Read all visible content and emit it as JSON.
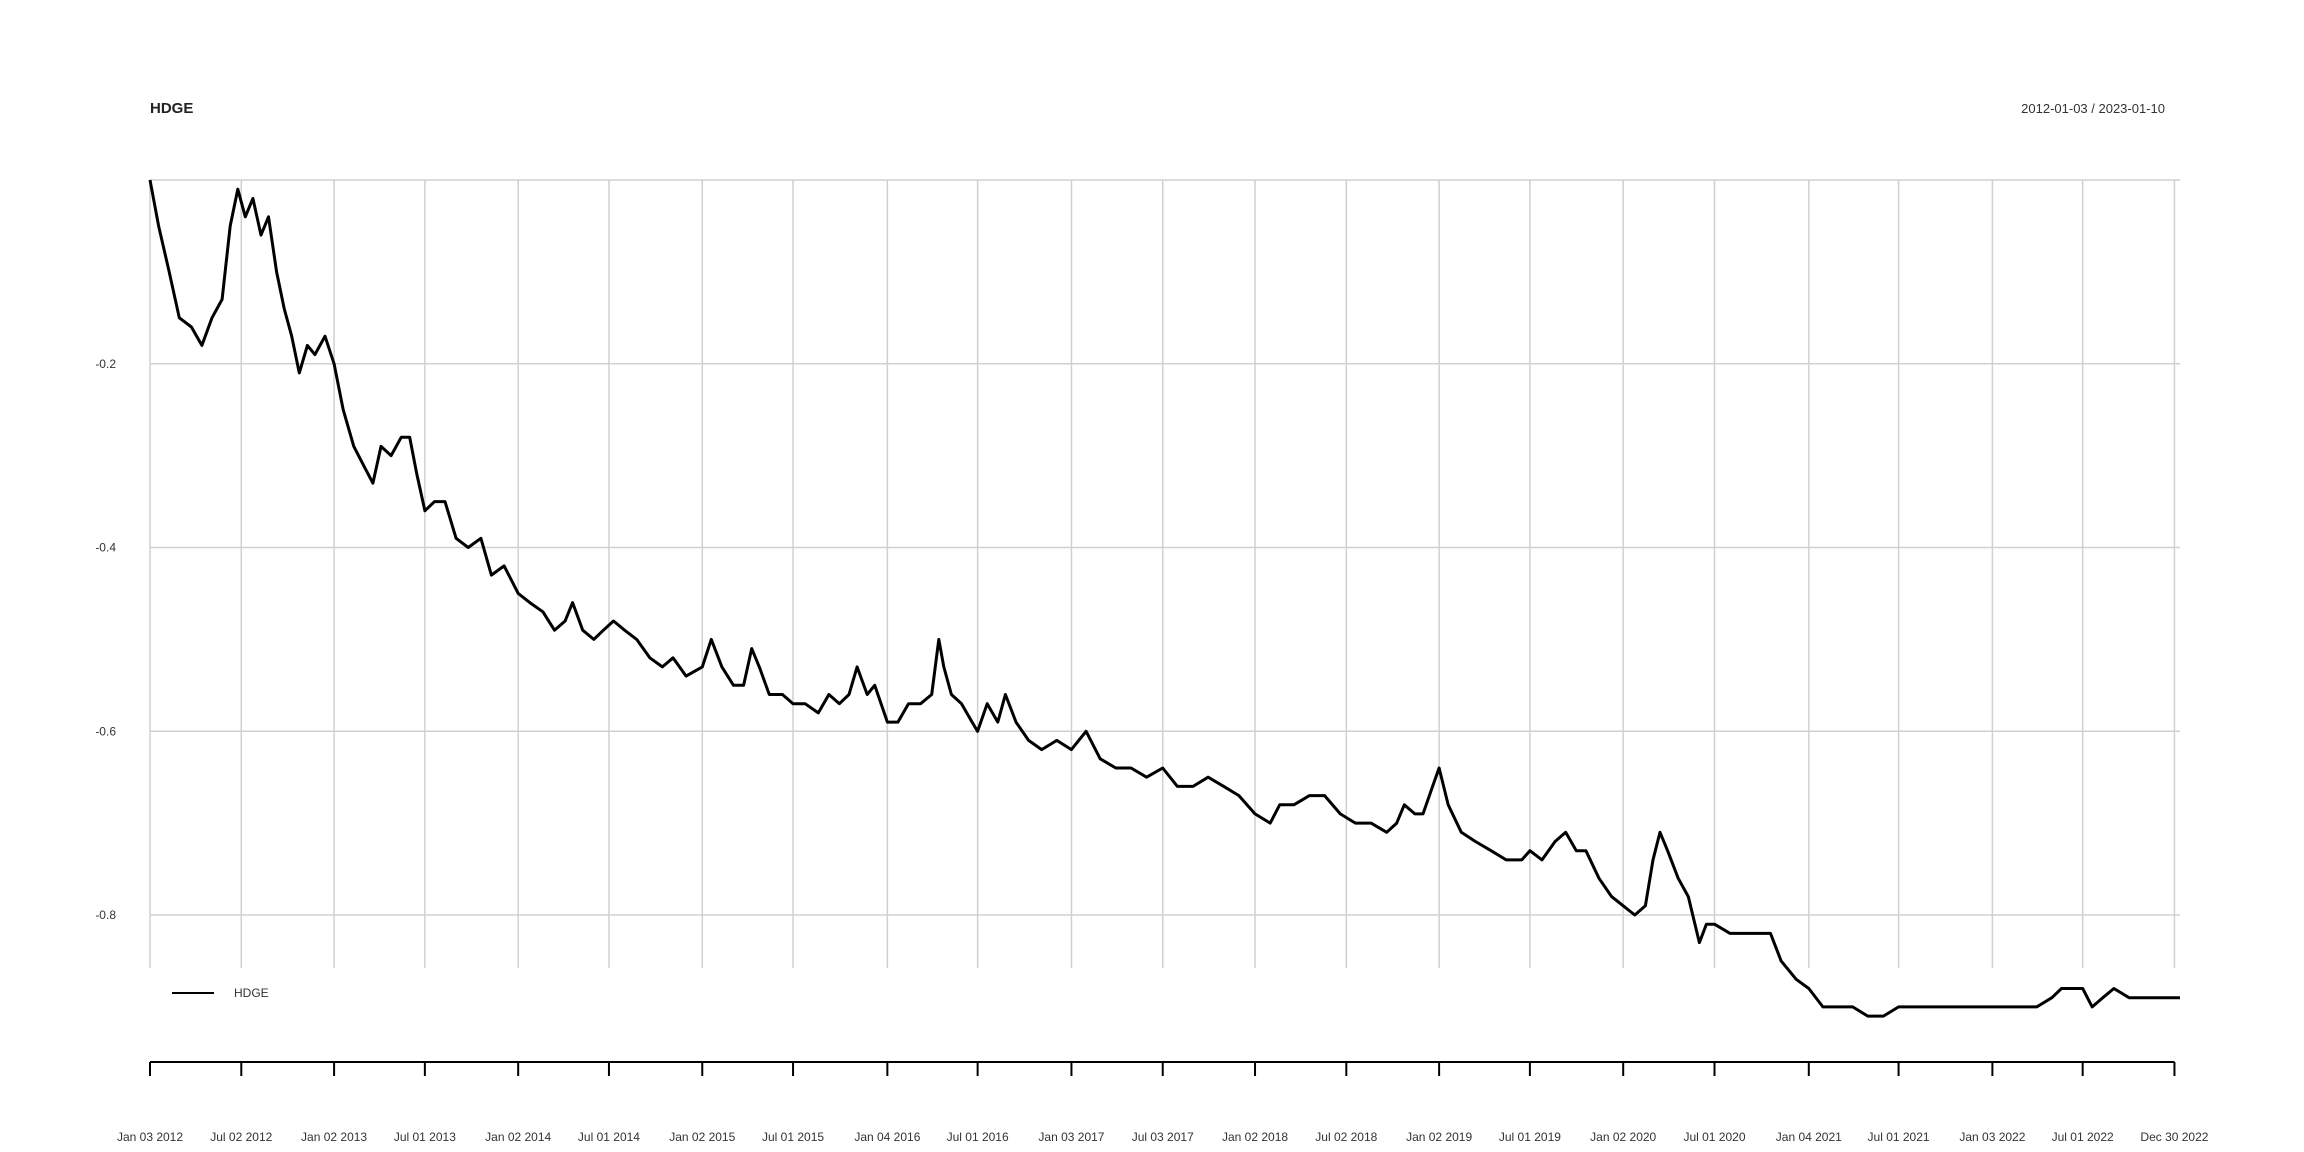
{
  "chart_data": {
    "type": "line",
    "title": "HDGE",
    "date_range": "2012-01-03 / 2023-01-10",
    "xlabel": "",
    "ylabel": "",
    "ylim": [
      -0.96,
      0.0
    ],
    "xlim": [
      "2012-01-03",
      "2023-01-10"
    ],
    "grid": true,
    "legend": {
      "position": "bottom-left",
      "entries": [
        "HDGE"
      ]
    },
    "y_ticks": [
      -0.2,
      -0.4,
      -0.6,
      -0.8
    ],
    "x_ticks": [
      {
        "label": "Jan 03 2012",
        "date": "2012-01-03"
      },
      {
        "label": "Jul 02 2012",
        "date": "2012-07-02"
      },
      {
        "label": "Jan 02 2013",
        "date": "2013-01-02"
      },
      {
        "label": "Jul 01 2013",
        "date": "2013-07-01"
      },
      {
        "label": "Jan 02 2014",
        "date": "2014-01-02"
      },
      {
        "label": "Jul 01 2014",
        "date": "2014-07-01"
      },
      {
        "label": "Jan 02 2015",
        "date": "2015-01-02"
      },
      {
        "label": "Jul 01 2015",
        "date": "2015-07-01"
      },
      {
        "label": "Jan 04 2016",
        "date": "2016-01-04"
      },
      {
        "label": "Jul 01 2016",
        "date": "2016-07-01"
      },
      {
        "label": "Jan 03 2017",
        "date": "2017-01-03"
      },
      {
        "label": "Jul 03 2017",
        "date": "2017-07-03"
      },
      {
        "label": "Jan 02 2018",
        "date": "2018-01-02"
      },
      {
        "label": "Jul 02 2018",
        "date": "2018-07-02"
      },
      {
        "label": "Jan 02 2019",
        "date": "2019-01-02"
      },
      {
        "label": "Jul 01 2019",
        "date": "2019-07-01"
      },
      {
        "label": "Jan 02 2020",
        "date": "2020-01-02"
      },
      {
        "label": "Jul 01 2020",
        "date": "2020-07-01"
      },
      {
        "label": "Jan 04 2021",
        "date": "2021-01-04"
      },
      {
        "label": "Jul 01 2021",
        "date": "2021-07-01"
      },
      {
        "label": "Jan 03 2022",
        "date": "2022-01-03"
      },
      {
        "label": "Jul 01 2022",
        "date": "2022-07-01"
      },
      {
        "label": "Dec 30 2022",
        "date": "2022-12-30"
      }
    ],
    "series": [
      {
        "name": "HDGE",
        "color": "#000000",
        "points": [
          [
            "2012-01-03",
            0.0
          ],
          [
            "2012-01-20",
            -0.05
          ],
          [
            "2012-02-10",
            -0.1
          ],
          [
            "2012-03-01",
            -0.15
          ],
          [
            "2012-03-25",
            -0.16
          ],
          [
            "2012-04-15",
            -0.18
          ],
          [
            "2012-05-05",
            -0.15
          ],
          [
            "2012-05-25",
            -0.13
          ],
          [
            "2012-06-10",
            -0.05
          ],
          [
            "2012-06-25",
            -0.01
          ],
          [
            "2012-07-10",
            -0.04
          ],
          [
            "2012-07-25",
            -0.02
          ],
          [
            "2012-08-10",
            -0.06
          ],
          [
            "2012-08-25",
            -0.04
          ],
          [
            "2012-09-10",
            -0.1
          ],
          [
            "2012-09-25",
            -0.14
          ],
          [
            "2012-10-10",
            -0.17
          ],
          [
            "2012-10-25",
            -0.21
          ],
          [
            "2012-11-10",
            -0.18
          ],
          [
            "2012-11-25",
            -0.19
          ],
          [
            "2012-12-15",
            -0.17
          ],
          [
            "2013-01-02",
            -0.2
          ],
          [
            "2013-01-20",
            -0.25
          ],
          [
            "2013-02-10",
            -0.29
          ],
          [
            "2013-03-01",
            -0.31
          ],
          [
            "2013-03-20",
            -0.33
          ],
          [
            "2013-04-05",
            -0.29
          ],
          [
            "2013-04-25",
            -0.3
          ],
          [
            "2013-05-15",
            -0.28
          ],
          [
            "2013-06-01",
            -0.28
          ],
          [
            "2013-06-15",
            -0.32
          ],
          [
            "2013-07-01",
            -0.36
          ],
          [
            "2013-07-20",
            -0.35
          ],
          [
            "2013-08-10",
            -0.35
          ],
          [
            "2013-09-01",
            -0.39
          ],
          [
            "2013-09-25",
            -0.4
          ],
          [
            "2013-10-20",
            -0.39
          ],
          [
            "2013-11-10",
            -0.43
          ],
          [
            "2013-12-05",
            -0.42
          ],
          [
            "2014-01-02",
            -0.45
          ],
          [
            "2014-01-25",
            -0.46
          ],
          [
            "2014-02-20",
            -0.47
          ],
          [
            "2014-03-15",
            -0.49
          ],
          [
            "2014-04-05",
            -0.48
          ],
          [
            "2014-04-20",
            -0.46
          ],
          [
            "2014-05-10",
            -0.49
          ],
          [
            "2014-06-01",
            -0.5
          ],
          [
            "2014-06-20",
            -0.49
          ],
          [
            "2014-07-10",
            -0.48
          ],
          [
            "2014-08-01",
            -0.49
          ],
          [
            "2014-08-25",
            -0.5
          ],
          [
            "2014-09-20",
            -0.52
          ],
          [
            "2014-10-15",
            -0.53
          ],
          [
            "2014-11-05",
            -0.52
          ],
          [
            "2014-12-01",
            -0.54
          ],
          [
            "2015-01-02",
            -0.53
          ],
          [
            "2015-01-20",
            -0.5
          ],
          [
            "2015-02-10",
            -0.53
          ],
          [
            "2015-03-05",
            -0.55
          ],
          [
            "2015-03-25",
            -0.55
          ],
          [
            "2015-04-10",
            -0.51
          ],
          [
            "2015-04-25",
            -0.53
          ],
          [
            "2015-05-15",
            -0.56
          ],
          [
            "2015-06-10",
            -0.56
          ],
          [
            "2015-07-01",
            -0.57
          ],
          [
            "2015-07-25",
            -0.57
          ],
          [
            "2015-08-20",
            -0.58
          ],
          [
            "2015-09-10",
            -0.56
          ],
          [
            "2015-10-01",
            -0.57
          ],
          [
            "2015-10-20",
            -0.56
          ],
          [
            "2015-11-05",
            -0.53
          ],
          [
            "2015-11-25",
            -0.56
          ],
          [
            "2015-12-10",
            -0.55
          ],
          [
            "2016-01-04",
            -0.59
          ],
          [
            "2016-01-25",
            -0.59
          ],
          [
            "2016-02-15",
            -0.57
          ],
          [
            "2016-03-10",
            -0.57
          ],
          [
            "2016-04-01",
            -0.56
          ],
          [
            "2016-04-15",
            -0.5
          ],
          [
            "2016-04-25",
            -0.53
          ],
          [
            "2016-05-10",
            -0.56
          ],
          [
            "2016-05-30",
            -0.57
          ],
          [
            "2016-06-20",
            -0.59
          ],
          [
            "2016-07-01",
            -0.6
          ],
          [
            "2016-07-20",
            -0.57
          ],
          [
            "2016-08-10",
            -0.59
          ],
          [
            "2016-08-25",
            -0.56
          ],
          [
            "2016-09-15",
            -0.59
          ],
          [
            "2016-10-10",
            -0.61
          ],
          [
            "2016-11-05",
            -0.62
          ],
          [
            "2016-12-05",
            -0.61
          ],
          [
            "2017-01-03",
            -0.62
          ],
          [
            "2017-02-01",
            -0.6
          ],
          [
            "2017-03-01",
            -0.63
          ],
          [
            "2017-04-01",
            -0.64
          ],
          [
            "2017-05-01",
            -0.64
          ],
          [
            "2017-06-01",
            -0.65
          ],
          [
            "2017-07-03",
            -0.64
          ],
          [
            "2017-08-01",
            -0.66
          ],
          [
            "2017-09-01",
            -0.66
          ],
          [
            "2017-10-01",
            -0.65
          ],
          [
            "2017-11-01",
            -0.66
          ],
          [
            "2017-12-01",
            -0.67
          ],
          [
            "2018-01-02",
            -0.69
          ],
          [
            "2018-02-01",
            -0.7
          ],
          [
            "2018-02-20",
            -0.68
          ],
          [
            "2018-03-20",
            -0.68
          ],
          [
            "2018-04-20",
            -0.67
          ],
          [
            "2018-05-20",
            -0.67
          ],
          [
            "2018-06-20",
            -0.69
          ],
          [
            "2018-07-20",
            -0.7
          ],
          [
            "2018-08-20",
            -0.7
          ],
          [
            "2018-09-20",
            -0.71
          ],
          [
            "2018-10-10",
            -0.7
          ],
          [
            "2018-10-25",
            -0.68
          ],
          [
            "2018-11-15",
            -0.69
          ],
          [
            "2018-12-01",
            -0.69
          ],
          [
            "2018-12-20",
            -0.66
          ],
          [
            "2019-01-02",
            -0.64
          ],
          [
            "2019-01-20",
            -0.68
          ],
          [
            "2019-02-15",
            -0.71
          ],
          [
            "2019-03-15",
            -0.72
          ],
          [
            "2019-04-15",
            -0.73
          ],
          [
            "2019-05-15",
            -0.74
          ],
          [
            "2019-06-15",
            -0.74
          ],
          [
            "2019-07-01",
            -0.73
          ],
          [
            "2019-07-25",
            -0.74
          ],
          [
            "2019-08-20",
            -0.72
          ],
          [
            "2019-09-10",
            -0.71
          ],
          [
            "2019-10-01",
            -0.73
          ],
          [
            "2019-10-20",
            -0.73
          ],
          [
            "2019-11-15",
            -0.76
          ],
          [
            "2019-12-10",
            -0.78
          ],
          [
            "2020-01-02",
            -0.79
          ],
          [
            "2020-01-25",
            -0.8
          ],
          [
            "2020-02-15",
            -0.79
          ],
          [
            "2020-03-01",
            -0.74
          ],
          [
            "2020-03-15",
            -0.71
          ],
          [
            "2020-03-30",
            -0.73
          ],
          [
            "2020-04-20",
            -0.76
          ],
          [
            "2020-05-10",
            -0.78
          ],
          [
            "2020-06-01",
            -0.83
          ],
          [
            "2020-06-15",
            -0.81
          ],
          [
            "2020-07-01",
            -0.81
          ],
          [
            "2020-08-01",
            -0.82
          ],
          [
            "2020-09-01",
            -0.82
          ],
          [
            "2020-10-01",
            -0.82
          ],
          [
            "2020-10-20",
            -0.82
          ],
          [
            "2020-11-10",
            -0.85
          ],
          [
            "2020-12-10",
            -0.87
          ],
          [
            "2021-01-04",
            -0.88
          ],
          [
            "2021-02-01",
            -0.9
          ],
          [
            "2021-03-01",
            -0.9
          ],
          [
            "2021-04-01",
            -0.9
          ],
          [
            "2021-05-01",
            -0.91
          ],
          [
            "2021-06-01",
            -0.91
          ],
          [
            "2021-07-01",
            -0.9
          ],
          [
            "2021-08-01",
            -0.9
          ],
          [
            "2021-09-01",
            -0.9
          ],
          [
            "2021-10-01",
            -0.9
          ],
          [
            "2021-11-01",
            -0.9
          ],
          [
            "2021-12-01",
            -0.9
          ],
          [
            "2022-01-03",
            -0.9
          ],
          [
            "2022-02-01",
            -0.9
          ],
          [
            "2022-03-01",
            -0.9
          ],
          [
            "2022-04-01",
            -0.9
          ],
          [
            "2022-05-01",
            -0.89
          ],
          [
            "2022-05-20",
            -0.88
          ],
          [
            "2022-06-10",
            -0.88
          ],
          [
            "2022-07-01",
            -0.88
          ],
          [
            "2022-07-20",
            -0.9
          ],
          [
            "2022-08-10",
            -0.89
          ],
          [
            "2022-09-01",
            -0.88
          ],
          [
            "2022-10-01",
            -0.89
          ],
          [
            "2022-11-01",
            -0.89
          ],
          [
            "2022-12-01",
            -0.89
          ],
          [
            "2022-12-30",
            -0.89
          ],
          [
            "2023-01-10",
            -0.89
          ]
        ]
      }
    ]
  }
}
